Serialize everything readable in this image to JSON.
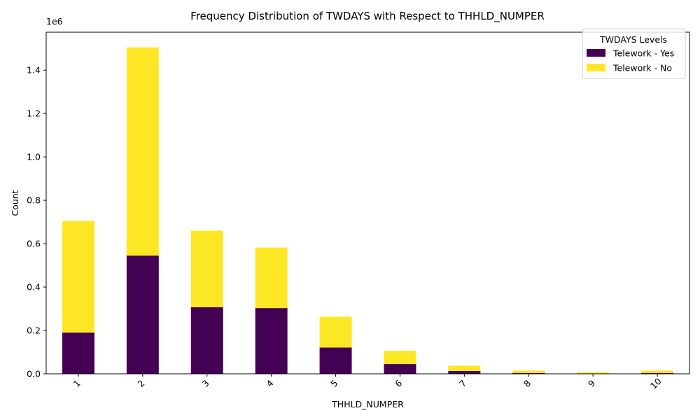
{
  "chart_data": {
    "type": "bar",
    "stacked": true,
    "title": "Frequency Distribution of TWDAYS with Respect to THHLD_NUMPER",
    "xlabel": "THHLD_NUMPER",
    "ylabel": "Count",
    "y_scale_label": "1e6",
    "categories": [
      "1",
      "2",
      "3",
      "4",
      "5",
      "6",
      "7",
      "8",
      "9",
      "10"
    ],
    "series": [
      {
        "name": "Telework - Yes",
        "color": "#440154",
        "values": [
          190000,
          545000,
          307000,
          303000,
          121000,
          45000,
          13000,
          4000,
          1500,
          4000
        ]
      },
      {
        "name": "Telework - No",
        "color": "#fde725",
        "values": [
          515000,
          960000,
          353000,
          279000,
          142000,
          61000,
          24000,
          11000,
          5500,
          11000
        ]
      }
    ],
    "ylim": [
      0,
      1575000
    ],
    "yticks": [
      0,
      200000,
      400000,
      600000,
      800000,
      1000000,
      1200000,
      1400000
    ],
    "ytick_labels": [
      "0.0",
      "0.2",
      "0.4",
      "0.6",
      "0.8",
      "1.0",
      "1.2",
      "1.4"
    ],
    "legend": {
      "title": "TWDAYS Levels",
      "position": "top-right"
    },
    "grid": false
  }
}
